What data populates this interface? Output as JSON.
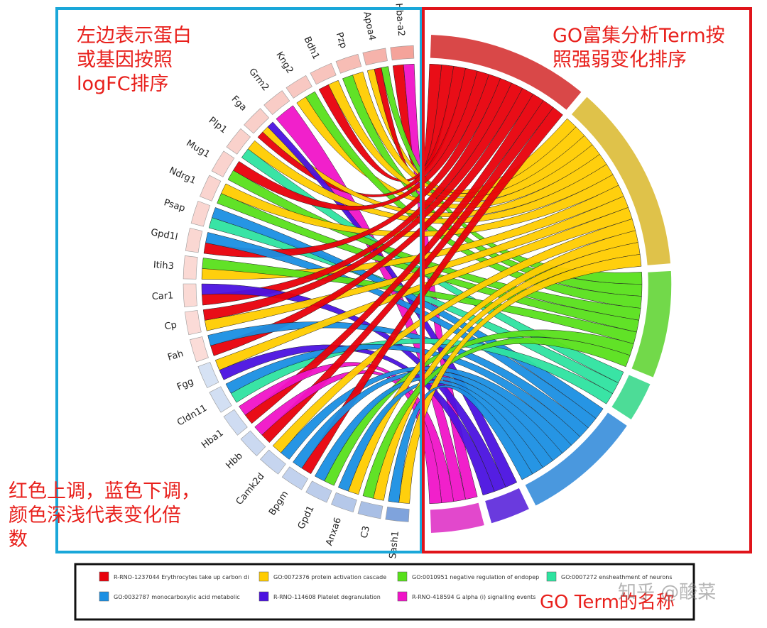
{
  "annotations": {
    "left_top": "左边表示蛋白\n或基因按照\nlogFC排序",
    "right_top": "GO富集分析Term按\n照强弱变化排序",
    "left_bottom": "红色上调，蓝色下调，\n颜色深浅代表变化倍\n数",
    "legend_label": "GO Term的名称"
  },
  "watermark": "知乎 @酸菜",
  "genes": [
    {
      "name": "Hba-a2",
      "color": "#f4a39a"
    },
    {
      "name": "Apoa4",
      "color": "#f6b3ab"
    },
    {
      "name": "Pzp",
      "color": "#f7bdb5"
    },
    {
      "name": "Bdh1",
      "color": "#f8c4bd"
    },
    {
      "name": "Kng2",
      "color": "#f8c8c2"
    },
    {
      "name": "Grm2",
      "color": "#f9ccc6"
    },
    {
      "name": "Fga",
      "color": "#f9cfc9"
    },
    {
      "name": "Plp1",
      "color": "#f9d1cb"
    },
    {
      "name": "Mug1",
      "color": "#fad3ce"
    },
    {
      "name": "Ndrg1",
      "color": "#fad4cf"
    },
    {
      "name": "Psap",
      "color": "#fad6d1"
    },
    {
      "name": "Gpd1l",
      "color": "#fad7d2"
    },
    {
      "name": "Itih3",
      "color": "#fbd9d4"
    },
    {
      "name": "Car1",
      "color": "#fbdad5"
    },
    {
      "name": "Cp",
      "color": "#fbdbd7"
    },
    {
      "name": "Fah",
      "color": "#fbdcd8"
    },
    {
      "name": "Fgg",
      "color": "#d6e2f4"
    },
    {
      "name": "Cldn11",
      "color": "#d2dff3"
    },
    {
      "name": "Hba1",
      "color": "#cfdcf2"
    },
    {
      "name": "Hbb",
      "color": "#cbd9f1"
    },
    {
      "name": "Camk2d",
      "color": "#c6d5ef"
    },
    {
      "name": "Bpgm",
      "color": "#c2d2ee"
    },
    {
      "name": "Gpd1",
      "color": "#bccdeb"
    },
    {
      "name": "Anxa6",
      "color": "#b5c8e9"
    },
    {
      "name": "C3",
      "color": "#a9bfe5"
    },
    {
      "name": "Sash1",
      "color": "#7fa3dc"
    }
  ],
  "terms": [
    {
      "id": "red",
      "color": "#e8000b",
      "arc_color": "#d94848",
      "label": "R-RNO-1237044 Erythrocytes take up carbon di"
    },
    {
      "id": "yellow",
      "color": "#ffcc00",
      "arc_color": "#dfc24a",
      "label": "GO:0072376 protein activation cascade"
    },
    {
      "id": "green",
      "color": "#58e01b",
      "arc_color": "#72d94a",
      "label": "GO:0010951 negative regulation of endopep"
    },
    {
      "id": "teal",
      "color": "#2ee3a0",
      "arc_color": "#4ddc97",
      "label": "GO:0007272 ensheathment of neurons"
    },
    {
      "id": "blue",
      "color": "#1a8fe3",
      "arc_color": "#4a98de",
      "label": "GO:0032787 monocarboxylic acid metabolic"
    },
    {
      "id": "purple",
      "color": "#4b12e0",
      "arc_color": "#6a3ade",
      "label": "R-RNO-114608 Platelet degranulation"
    },
    {
      "id": "magenta",
      "color": "#f014c8",
      "arc_color": "#e248cc",
      "label": "R-RNO-418594 G alpha (i) signalling events"
    }
  ],
  "links": [
    [
      "Hba-a2",
      "red"
    ],
    [
      "Hba-a2",
      "magenta"
    ],
    [
      "Apoa4",
      "yellow"
    ],
    [
      "Apoa4",
      "red"
    ],
    [
      "Apoa4",
      "green"
    ],
    [
      "Pzp",
      "green"
    ],
    [
      "Pzp",
      "yellow"
    ],
    [
      "Bdh1",
      "red"
    ],
    [
      "Bdh1",
      "yellow"
    ],
    [
      "Kng2",
      "yellow"
    ],
    [
      "Kng2",
      "green"
    ],
    [
      "Grm2",
      "magenta"
    ],
    [
      "Fga",
      "red"
    ],
    [
      "Fga",
      "yellow"
    ],
    [
      "Fga",
      "purple"
    ],
    [
      "Plp1",
      "teal"
    ],
    [
      "Plp1",
      "yellow"
    ],
    [
      "Mug1",
      "green"
    ],
    [
      "Mug1",
      "red"
    ],
    [
      "Ndrg1",
      "green"
    ],
    [
      "Ndrg1",
      "yellow"
    ],
    [
      "Psap",
      "teal"
    ],
    [
      "Psap",
      "blue"
    ],
    [
      "Gpd1l",
      "red"
    ],
    [
      "Gpd1l",
      "blue"
    ],
    [
      "Itih3",
      "yellow"
    ],
    [
      "Itih3",
      "green"
    ],
    [
      "Car1",
      "red"
    ],
    [
      "Car1",
      "purple"
    ],
    [
      "Cp",
      "yellow"
    ],
    [
      "Cp",
      "red"
    ],
    [
      "Fah",
      "red"
    ],
    [
      "Fah",
      "blue"
    ],
    [
      "Fgg",
      "purple"
    ],
    [
      "Fgg",
      "yellow"
    ],
    [
      "Cldn11",
      "teal"
    ],
    [
      "Cldn11",
      "blue"
    ],
    [
      "Hba1",
      "red"
    ],
    [
      "Hba1",
      "magenta"
    ],
    [
      "Hbb",
      "red"
    ],
    [
      "Hbb",
      "magenta"
    ],
    [
      "Camk2d",
      "blue"
    ],
    [
      "Camk2d",
      "yellow"
    ],
    [
      "Bpgm",
      "red"
    ],
    [
      "Bpgm",
      "blue"
    ],
    [
      "Gpd1",
      "green"
    ],
    [
      "Gpd1",
      "blue"
    ],
    [
      "Anxa6",
      "yellow"
    ],
    [
      "Anxa6",
      "blue"
    ],
    [
      "C3",
      "yellow"
    ],
    [
      "C3",
      "green"
    ],
    [
      "Sash1",
      "yellow"
    ],
    [
      "Sash1",
      "blue"
    ]
  ]
}
